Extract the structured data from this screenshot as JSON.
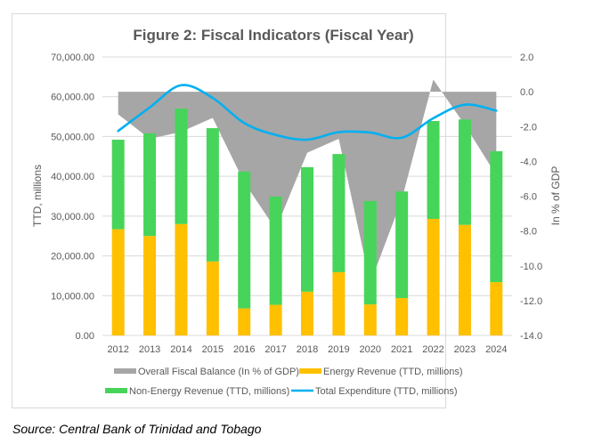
{
  "source_note": "Source: Central Bank of Trinidad and Tobago",
  "chart_data": {
    "type": "bar",
    "title": "Figure 2: Fiscal Indicators (Fiscal Year)",
    "xlabel": "",
    "ylabel": "TTD, millions",
    "y2label": "In % of GDP",
    "categories": [
      "2012",
      "2013",
      "2014",
      "2015",
      "2016",
      "2017",
      "2018",
      "2019",
      "2020",
      "2021",
      "2022",
      "2023",
      "2024"
    ],
    "ylim": [
      0,
      70000
    ],
    "yticks": [
      0,
      10000,
      20000,
      30000,
      40000,
      50000,
      60000,
      70000
    ],
    "ytick_labels": [
      "0.00",
      "10,000.00",
      "20,000.00",
      "30,000.00",
      "40,000.00",
      "50,000.00",
      "60,000.00",
      "70,000.00"
    ],
    "y2lim": [
      -14,
      2
    ],
    "y2ticks": [
      -14,
      -12,
      -10,
      -8,
      -6,
      -4,
      -2,
      0,
      2
    ],
    "y2tick_labels": [
      "-14.0",
      "-12.0",
      "-10.0",
      "-8.0",
      "-6.0",
      "-4.0",
      "-2.0",
      "0.0",
      "2.0"
    ],
    "grid": true,
    "legend_position": "bottom",
    "series": [
      {
        "name": "Overall Fiscal Balance (In % of GDP)",
        "kind": "area",
        "axis": "right",
        "color": "#a6a6a6",
        "values": [
          -1.3,
          -2.7,
          -2.3,
          -1.5,
          -5.2,
          -7.9,
          -3.5,
          -2.7,
          -11.0,
          -6.2,
          0.7,
          -1.9,
          -4.8
        ]
      },
      {
        "name": "Energy Revenue (TTD, millions)",
        "kind": "stacked-bar",
        "axis": "left",
        "color": "#ffc000",
        "values": [
          26700,
          25000,
          28000,
          18600,
          6800,
          7700,
          11000,
          15900,
          7800,
          9400,
          29300,
          27800,
          13400
        ]
      },
      {
        "name": "Non-Energy Revenue (TTD, millions)",
        "kind": "stacked-bar",
        "axis": "left",
        "color": "#47d45a",
        "values": [
          22500,
          25800,
          29000,
          33500,
          34400,
          27200,
          31300,
          29700,
          26000,
          26800,
          24600,
          26500,
          32900
        ]
      },
      {
        "name": "Total Expenditure (TTD, millions)",
        "kind": "line",
        "axis": "left",
        "color": "#00b0f0",
        "smooth": true,
        "values": [
          51400,
          57300,
          62900,
          59700,
          53400,
          50400,
          49200,
          51100,
          51000,
          49700,
          54600,
          58000,
          56500
        ]
      }
    ]
  }
}
